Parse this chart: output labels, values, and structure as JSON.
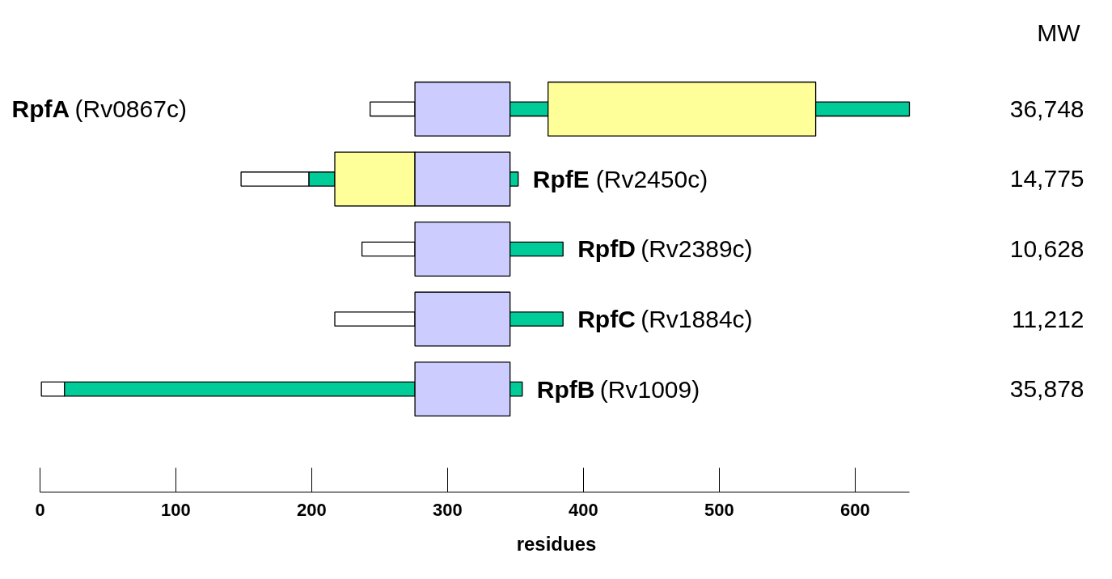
{
  "chart_data": {
    "type": "bar",
    "orientation": "horizontal",
    "categories": [
      "RpfA (Rv0867c)",
      "RpfE (Rv2450c)",
      "RpfD (Rv2389c)",
      "RpfC (Rv1884c)",
      "RpfB (Rv1009)"
    ],
    "series": [
      {
        "color": "#ffffff",
        "base": [
          243,
          148,
          237,
          217,
          1
        ],
        "values": [
          33,
          50,
          39,
          59,
          17
        ]
      },
      {
        "color": "#00cc99",
        "base": [
          null,
          198,
          null,
          null,
          18
        ],
        "values": [
          null,
          19,
          null,
          null,
          258
        ]
      },
      {
        "color": "#ffff99",
        "base": [
          null,
          217,
          null,
          null,
          null
        ],
        "values": [
          null,
          59,
          null,
          null,
          null
        ]
      },
      {
        "color": "#ccccff",
        "base": [
          276,
          276,
          276,
          276,
          276
        ],
        "values": [
          70,
          70,
          70,
          70,
          70
        ]
      },
      {
        "color": "#00cc99",
        "base": [
          346,
          346,
          346,
          346,
          346
        ],
        "values": [
          28,
          6,
          39,
          39,
          9
        ]
      },
      {
        "color": "#ffff99",
        "base": [
          374,
          null,
          null,
          null,
          null
        ],
        "values": [
          197,
          null,
          null,
          null,
          null
        ]
      },
      {
        "color": "#00cc99",
        "base": [
          571,
          null,
          null,
          null,
          null
        ],
        "values": [
          69,
          null,
          null,
          null,
          null
        ]
      }
    ],
    "xlim": [
      0,
      640
    ],
    "xticks": [
      0,
      100,
      200,
      300,
      400,
      500,
      600
    ],
    "xlabel": "residues",
    "tick_labels": "x",
    "grid": false,
    "annotations": [
      "MW",
      "36,748",
      "14,775",
      "10,628",
      "11,212",
      "35,878"
    ]
  }
}
